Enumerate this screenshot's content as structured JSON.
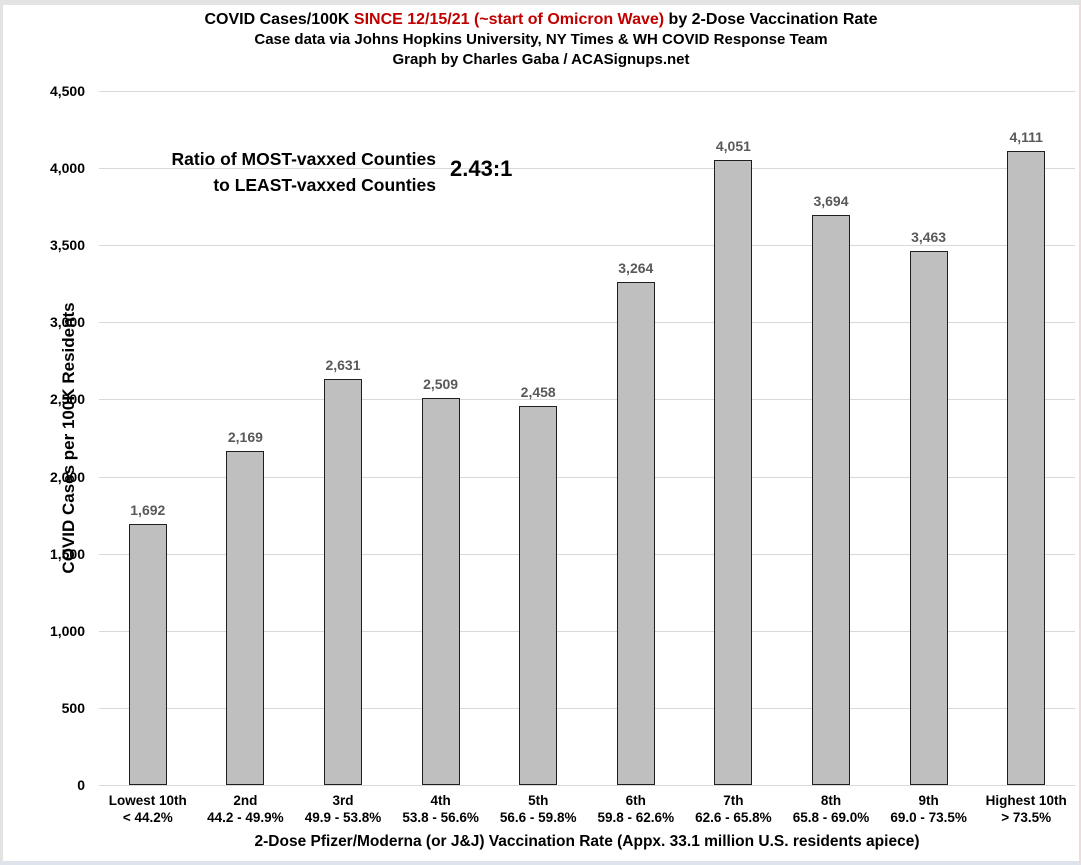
{
  "header": {
    "title_part1": "COVID Cases/100K ",
    "title_highlight": "SINCE 12/15/21 (~start of Omicron Wave)",
    "title_part2": " by 2-Dose Vaccination Rate",
    "subtitle": "Case data via Johns Hopkins University, NY Times & WH COVID Response Team",
    "credit": "Graph by Charles Gaba / ACASignups.net"
  },
  "annotation": {
    "line1": "Ratio of MOST-vaxxed Counties",
    "line2": "to LEAST-vaxxed Counties",
    "ratio": "2.43:1"
  },
  "chart_data": {
    "type": "bar",
    "title": "COVID Cases/100K SINCE 12/15/21 (~start of Omicron Wave) by 2-Dose Vaccination Rate",
    "ylabel": "COVID Cases per 100K Residents",
    "xlabel": "2-Dose Pfizer/Moderna (or J&J) Vaccination Rate (Appx. 33.1 million U.S. residents apiece)",
    "ylim": [
      0,
      4500
    ],
    "ytick_step": 500,
    "ytick_labels": [
      "0",
      "500",
      "1,000",
      "1,500",
      "2,000",
      "2,500",
      "3,000",
      "3,500",
      "4,000",
      "4,500"
    ],
    "grid": true,
    "legend": "none",
    "categories": [
      {
        "decile": "Lowest 10th",
        "range": "< 44.2%"
      },
      {
        "decile": "2nd",
        "range": "44.2 - 49.9%"
      },
      {
        "decile": "3rd",
        "range": "49.9 - 53.8%"
      },
      {
        "decile": "4th",
        "range": "53.8 - 56.6%"
      },
      {
        "decile": "5th",
        "range": "56.6 - 59.8%"
      },
      {
        "decile": "6th",
        "range": "59.8 - 62.6%"
      },
      {
        "decile": "7th",
        "range": "62.6 - 65.8%"
      },
      {
        "decile": "8th",
        "range": "65.8 - 69.0%"
      },
      {
        "decile": "9th",
        "range": "69.0 - 73.5%"
      },
      {
        "decile": "Highest 10th",
        "range": "> 73.5%"
      }
    ],
    "values": [
      1692,
      2169,
      2631,
      2509,
      2458,
      3264,
      4051,
      3694,
      3463,
      4111
    ],
    "value_labels": [
      "1,692",
      "2,169",
      "2,631",
      "2,509",
      "2,458",
      "3,264",
      "4,051",
      "3,694",
      "3,463",
      "4,111"
    ],
    "colors": {
      "bar_fill": "#bfbfbf",
      "bar_border": "#1f1f1f",
      "gridline": "#d9d9d9",
      "value_label": "#595959",
      "title_accent_red": "#c00000"
    }
  }
}
